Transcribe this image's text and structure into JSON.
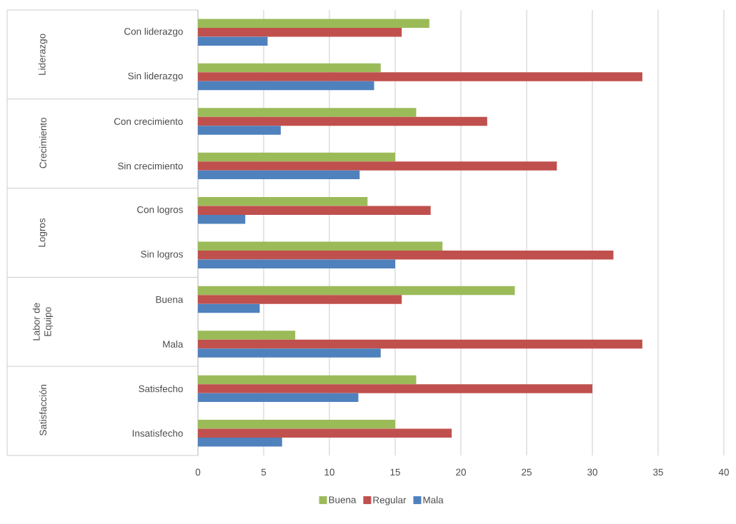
{
  "chart_data": {
    "type": "bar",
    "orientation": "horizontal",
    "categories": [
      "Con liderazgo",
      "Sin liderazgo",
      "Con crecimiento",
      "Sin crecimiento",
      "Con logros",
      "Sin logros",
      "Buena",
      "Mala",
      "Satisfecho",
      "Insatisfecho"
    ],
    "series": [
      {
        "name": "Buena",
        "color": "#9bbb59",
        "values": [
          17.6,
          13.9,
          16.6,
          15.0,
          12.9,
          18.6,
          24.1,
          7.4,
          16.6,
          15.0
        ]
      },
      {
        "name": "Regular",
        "color": "#c0504d",
        "values": [
          15.5,
          33.8,
          22.0,
          27.3,
          17.7,
          31.6,
          15.5,
          33.8,
          30.0,
          19.3
        ]
      },
      {
        "name": "Mala",
        "color": "#4f81bd",
        "values": [
          5.3,
          13.4,
          6.3,
          12.3,
          3.6,
          15.0,
          4.7,
          13.9,
          12.2,
          6.4
        ]
      }
    ],
    "annotations": [
      "Liderazgo",
      "Crecimiento",
      "Logros",
      "Labor de Equipo",
      "Satisfacción"
    ],
    "xlim": [
      0,
      40
    ],
    "xticks": [
      0,
      5,
      10,
      15,
      20,
      25,
      30,
      35,
      40
    ],
    "grid": "x",
    "legend": "bottom"
  }
}
